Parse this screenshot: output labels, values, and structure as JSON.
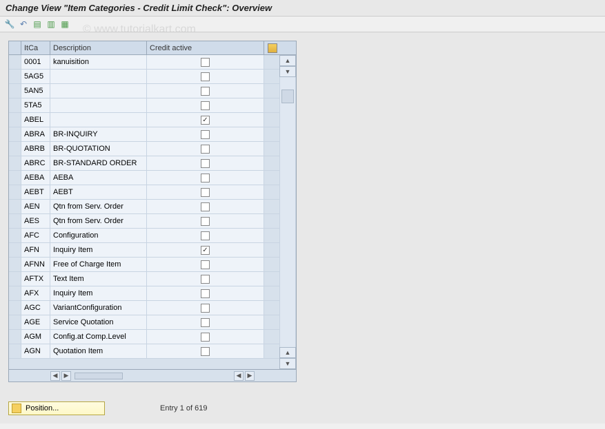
{
  "title": "Change View \"Item Categories - Credit Limit Check\": Overview",
  "watermark": "© www.tutorialkart.com",
  "toolbar_icons": [
    "wrench",
    "undo",
    "sheet-green",
    "sheet-save",
    "sheet-grid"
  ],
  "table": {
    "columns": {
      "itca": "ItCa",
      "description": "Description",
      "credit": "Credit active"
    },
    "header_bg": "#d0dcea",
    "row_bg": "#eef3f9",
    "border_color": "#9aa8b8",
    "rows": [
      {
        "itca": "0001",
        "description": "kanuisition",
        "credit": false
      },
      {
        "itca": "5AG5",
        "description": "",
        "credit": false
      },
      {
        "itca": "5AN5",
        "description": "",
        "credit": false
      },
      {
        "itca": "5TA5",
        "description": "",
        "credit": false
      },
      {
        "itca": "ABEL",
        "description": "",
        "credit": true
      },
      {
        "itca": "ABRA",
        "description": "BR-INQUIRY",
        "credit": false
      },
      {
        "itca": "ABRB",
        "description": "BR-QUOTATION",
        "credit": false
      },
      {
        "itca": "ABRC",
        "description": "BR-STANDARD ORDER",
        "credit": false
      },
      {
        "itca": "AEBA",
        "description": "AEBA",
        "credit": false
      },
      {
        "itca": "AEBT",
        "description": "AEBT",
        "credit": false
      },
      {
        "itca": "AEN",
        "description": "Qtn from Serv. Order",
        "credit": false
      },
      {
        "itca": "AES",
        "description": "Qtn from Serv. Order",
        "credit": false
      },
      {
        "itca": "AFC",
        "description": "Configuration",
        "credit": false
      },
      {
        "itca": "AFN",
        "description": "Inquiry Item",
        "credit": true
      },
      {
        "itca": "AFNN",
        "description": "Free of Charge Item",
        "credit": false
      },
      {
        "itca": "AFTX",
        "description": "Text Item",
        "credit": false
      },
      {
        "itca": "AFX",
        "description": "Inquiry Item",
        "credit": false
      },
      {
        "itca": "AGC",
        "description": "VariantConfiguration",
        "credit": false
      },
      {
        "itca": "AGE",
        "description": "Service Quotation",
        "credit": false
      },
      {
        "itca": "AGM",
        "description": "Config.at Comp.Level",
        "credit": false
      },
      {
        "itca": "AGN",
        "description": "Quotation Item",
        "credit": false
      }
    ]
  },
  "footer": {
    "position_label": "Position...",
    "entry_label": "Entry 1 of 619"
  },
  "colors": {
    "page_bg": "#e8e8e8",
    "accent_yellow": "#fef8c8"
  }
}
